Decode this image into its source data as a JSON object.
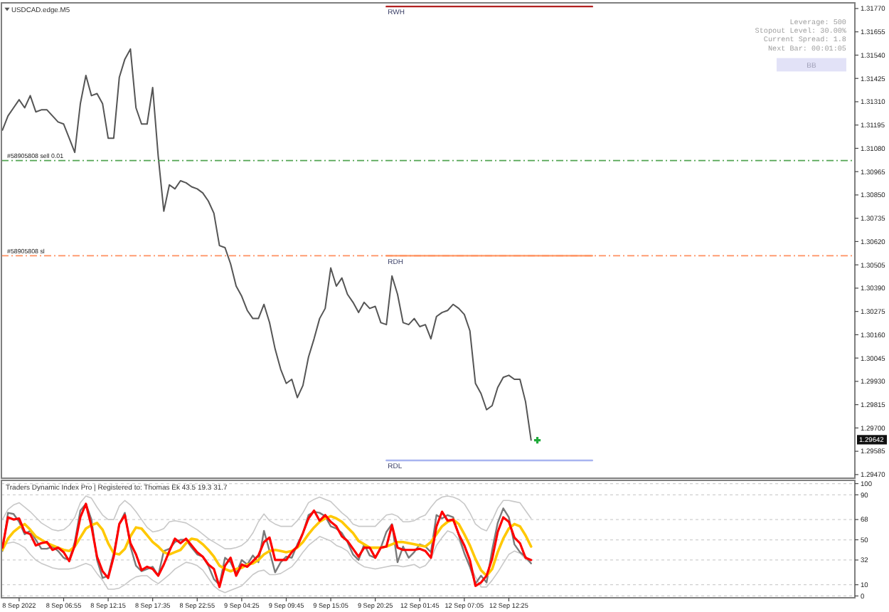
{
  "chart_data": [
    {
      "type": "line",
      "title": "USDCAD.edge.M5",
      "tick_labels": "y",
      "ylim": [
        1.29452,
        1.31798
      ],
      "categories": [
        null,
        null,
        null,
        null,
        null,
        null,
        null,
        null,
        null,
        null,
        null,
        null,
        null,
        null,
        null,
        null,
        null,
        null,
        null,
        null,
        null,
        null,
        null,
        null,
        null,
        null,
        null,
        null,
        null,
        null,
        null,
        null,
        null,
        null,
        null,
        null,
        null,
        null,
        null,
        null,
        null,
        null,
        null,
        null,
        null,
        null,
        null,
        null,
        null,
        null,
        null,
        null,
        null,
        null,
        null,
        null,
        null,
        null,
        null,
        null,
        null,
        null,
        null,
        null,
        null,
        null,
        null,
        null,
        null,
        null,
        null,
        null,
        null,
        null,
        null,
        null,
        null,
        null,
        null,
        null,
        null,
        null,
        null,
        null,
        null,
        null,
        null,
        null,
        null,
        null,
        null,
        null,
        null,
        null,
        null,
        null,
        null,
        null,
        null,
        null,
        null,
        null,
        null,
        null,
        null,
        null,
        null,
        null,
        null,
        null,
        null,
        null,
        null,
        null,
        null,
        null,
        null,
        null,
        null,
        null,
        null,
        null,
        null,
        null,
        null,
        null,
        null,
        null,
        null,
        null,
        null,
        null,
        null,
        null,
        null,
        null,
        null,
        null,
        null,
        null,
        null,
        null,
        null,
        null,
        null,
        null,
        null,
        null,
        null,
        null,
        null,
        null,
        null,
        null
      ],
      "yticks": [
        {
          "value": 1.2947,
          "label": "1.29470"
        },
        1.29585,
        {
          "value": 1.297,
          "label": "1.29700"
        },
        1.29815,
        {
          "value": 1.2993,
          "label": "1.29930"
        },
        1.30045,
        {
          "value": 1.3016,
          "label": "1.30160"
        },
        1.30275,
        {
          "value": 1.3039,
          "label": "1.30390"
        },
        1.30505,
        {
          "value": 1.3062,
          "label": "1.30620"
        },
        1.30735,
        {
          "value": 1.3085,
          "label": "1.30850"
        },
        1.30965,
        {
          "value": 1.3108,
          "label": "1.31080"
        },
        1.31195,
        {
          "value": 1.3131,
          "label": "1.31310"
        },
        1.31425,
        {
          "value": 1.3154,
          "label": "1.31540"
        },
        1.31655,
        {
          "value": 1.3177,
          "label": "1.31770"
        }
      ],
      "series": [
        {
          "color": "#555555",
          "values": [
            1.3117,
            1.3124,
            1.3128,
            1.3132,
            1.3128,
            1.3134,
            1.3126,
            1.3127,
            1.3127,
            1.3124,
            1.3121,
            1.312,
            1.3113,
            1.3106,
            1.313,
            1.3144,
            1.3134,
            1.3135,
            1.313,
            1.3113,
            1.3113,
            1.3143,
            1.3152,
            1.3157,
            1.3128,
            1.312,
            1.312,
            1.3138,
            1.3104,
            1.3077,
            1.309,
            1.3088,
            1.3092,
            1.3091,
            1.3089,
            1.3088,
            1.3086,
            1.3082,
            1.3076,
            1.306,
            1.3059,
            1.3051,
            1.304,
            1.3035,
            1.3028,
            1.3024,
            1.3024,
            1.3031,
            1.3022,
            1.3009,
            1.2999,
            1.2992,
            1.2994,
            1.2985,
            1.2991,
            1.3005,
            1.3014,
            1.3024,
            1.3029,
            1.3049,
            1.304,
            1.3044,
            1.3036,
            1.3032,
            1.3027,
            1.3032,
            1.3029,
            1.303,
            1.3022,
            1.3021,
            1.3045,
            1.3036,
            1.3022,
            1.3021,
            1.3024,
            1.302,
            1.3021,
            1.3014,
            1.3025,
            1.3027,
            1.3028,
            1.3031,
            1.3029,
            1.3026,
            1.3018,
            1.2992,
            1.2987,
            1.2979,
            1.2981,
            1.299,
            1.2995,
            1.2996,
            1.2994,
            1.2994,
            1.2983,
            1.2964,
            null,
            null,
            null,
            null,
            null,
            null,
            null,
            null,
            null,
            null,
            null,
            null,
            null,
            null,
            null,
            null,
            null,
            null,
            null,
            null,
            null,
            null,
            null,
            null,
            null,
            null,
            null,
            null,
            null,
            null,
            null,
            null,
            null,
            null,
            null,
            null,
            null,
            null,
            null,
            null,
            null,
            null,
            null,
            null,
            null,
            null,
            null,
            null,
            null,
            null,
            null,
            null,
            null,
            null,
            null,
            null,
            null,
            null
          ]
        },
        {
          "name": "RWH",
          "color": "#b22222",
          "values": [
            null,
            null,
            null,
            null,
            null,
            null,
            null,
            null,
            null,
            null,
            null,
            null,
            null,
            null,
            null,
            null,
            null,
            null,
            null,
            null,
            null,
            null,
            null,
            null,
            null,
            null,
            null,
            null,
            null,
            null,
            null,
            null,
            null,
            null,
            null,
            null,
            null,
            null,
            null,
            null,
            null,
            null,
            null,
            null,
            null,
            null,
            null,
            null,
            null,
            null,
            null,
            null,
            null,
            null,
            null,
            null,
            null,
            null,
            null,
            null,
            null,
            null,
            null,
            null,
            null,
            null,
            null,
            null,
            null,
            1.3178,
            1.3178,
            1.3178,
            1.3178,
            1.3178,
            1.3178,
            1.3178,
            1.3178,
            1.3178,
            1.3178,
            1.3178,
            1.3178,
            1.3178,
            1.3178,
            1.3178,
            1.3178,
            1.3178,
            1.3178,
            1.3178,
            1.3178,
            1.3178,
            1.3178,
            1.3178,
            1.3178,
            1.3178,
            1.3178,
            1.3178,
            1.3178,
            1.3178,
            1.3178,
            1.3178,
            1.3178,
            1.3178,
            1.3178,
            1.3178,
            1.3178,
            1.3178,
            1.3178,
            null,
            null,
            null,
            null,
            null,
            null,
            null,
            null,
            null,
            null,
            null,
            null,
            null,
            null,
            null,
            null,
            null,
            null,
            null,
            null,
            null,
            null,
            null,
            null,
            null,
            null,
            null,
            null,
            null,
            null,
            null,
            null,
            null,
            null,
            null,
            null,
            null,
            null,
            null,
            null,
            null,
            null,
            null,
            null,
            null,
            null,
            null
          ]
        },
        {
          "name": "RDH",
          "color": "#ff9966",
          "values": [
            null,
            null,
            null,
            null,
            null,
            null,
            null,
            null,
            null,
            null,
            null,
            null,
            null,
            null,
            null,
            null,
            null,
            null,
            null,
            null,
            null,
            null,
            null,
            null,
            null,
            null,
            null,
            null,
            null,
            null,
            null,
            null,
            null,
            null,
            null,
            null,
            null,
            null,
            null,
            null,
            null,
            null,
            null,
            null,
            null,
            null,
            null,
            null,
            null,
            null,
            null,
            null,
            null,
            null,
            null,
            null,
            null,
            null,
            null,
            null,
            null,
            null,
            null,
            null,
            null,
            null,
            null,
            null,
            null,
            1.3055,
            1.3055,
            1.3055,
            1.3055,
            1.3055,
            1.3055,
            1.3055,
            1.3055,
            1.3055,
            1.3055,
            1.3055,
            1.3055,
            1.3055,
            1.3055,
            1.3055,
            1.3055,
            1.3055,
            1.3055,
            1.3055,
            1.3055,
            1.3055,
            1.3055,
            1.3055,
            1.3055,
            1.3055,
            1.3055,
            1.3055,
            1.3055,
            1.3055,
            1.3055,
            1.3055,
            1.3055,
            1.3055,
            1.3055,
            1.3055,
            1.3055,
            1.3055,
            1.3055,
            null,
            null,
            null,
            null,
            null,
            null,
            null,
            null,
            null,
            null,
            null,
            null,
            null,
            null,
            null,
            null,
            null,
            null,
            null,
            null,
            null,
            null,
            null,
            null,
            null,
            null,
            null,
            null,
            null,
            null,
            null,
            null,
            null,
            null,
            null,
            null,
            null,
            null,
            null,
            null,
            null,
            null,
            null,
            null,
            null,
            null,
            null
          ]
        },
        {
          "name": "RDL",
          "color": "#a8b4f0",
          "values": [
            null,
            null,
            null,
            null,
            null,
            null,
            null,
            null,
            null,
            null,
            null,
            null,
            null,
            null,
            null,
            null,
            null,
            null,
            null,
            null,
            null,
            null,
            null,
            null,
            null,
            null,
            null,
            null,
            null,
            null,
            null,
            null,
            null,
            null,
            null,
            null,
            null,
            null,
            null,
            null,
            null,
            null,
            null,
            null,
            null,
            null,
            null,
            null,
            null,
            null,
            null,
            null,
            null,
            null,
            null,
            null,
            null,
            null,
            null,
            null,
            null,
            null,
            null,
            null,
            null,
            null,
            null,
            null,
            null,
            1.2954,
            1.2954,
            1.2954,
            1.2954,
            1.2954,
            1.2954,
            1.2954,
            1.2954,
            1.2954,
            1.2954,
            1.2954,
            1.2954,
            1.2954,
            1.2954,
            1.2954,
            1.2954,
            1.2954,
            1.2954,
            1.2954,
            1.2954,
            1.2954,
            1.2954,
            1.2954,
            1.2954,
            1.2954,
            1.2954,
            1.2954,
            1.2954,
            1.2954,
            1.2954,
            1.2954,
            1.2954,
            1.2954,
            1.2954,
            1.2954,
            1.2954,
            1.2954,
            1.2954,
            null,
            null,
            null,
            null,
            null,
            null,
            null,
            null,
            null,
            null,
            null,
            null,
            null,
            null,
            null,
            null,
            null,
            null,
            null,
            null,
            null,
            null,
            null,
            null,
            null,
            null,
            null,
            null,
            null,
            null,
            null,
            null,
            null,
            null,
            null,
            null,
            null,
            null,
            null,
            null,
            null,
            null,
            null,
            null,
            null,
            null,
            null
          ]
        }
      ],
      "ref_lines": [
        {
          "axis": "y",
          "value": 1.3102,
          "label": "#58905808 sell 0.01",
          "color": "#52a552",
          "line_style": "dashed"
        },
        {
          "axis": "y",
          "value": 1.3055,
          "label": "#58905808 sl",
          "color": "#ff9060",
          "line_style": "dashed"
        }
      ],
      "annotations": [
        "Leverage: 500",
        "Stopout Level: 30.00%",
        "Current Spread: 1.8",
        "Next Bar: 00:01:05",
        "BB",
        {
          "text": "1.29642",
          "y": 1.29642
        }
      ]
    },
    {
      "type": "line",
      "title": "Traders Dynamic Index Pro | Registered to: Thomas Ek 43.5 19.3 31.7",
      "ylim": [
        -1.6,
        102.9
      ],
      "categories": [
        null,
        null,
        null,
        "8 Sep 2022",
        null,
        null,
        null,
        null,
        null,
        null,
        null,
        "8 Sep 06:55",
        null,
        null,
        null,
        null,
        null,
        null,
        null,
        "8 Sep 12:15",
        null,
        null,
        null,
        null,
        null,
        null,
        null,
        "8 Sep 17:35",
        null,
        null,
        null,
        null,
        null,
        null,
        null,
        "8 Sep 22:55",
        null,
        null,
        null,
        null,
        null,
        null,
        null,
        "9 Sep 04:25",
        null,
        null,
        null,
        null,
        null,
        null,
        null,
        "9 Sep 09:45",
        null,
        null,
        null,
        null,
        null,
        null,
        null,
        "9 Sep 15:05",
        null,
        null,
        null,
        null,
        null,
        null,
        null,
        "9 Sep 20:25",
        null,
        null,
        null,
        null,
        null,
        null,
        null,
        "12 Sep 01:45",
        null,
        null,
        null,
        null,
        null,
        null,
        null,
        "12 Sep 07:05",
        null,
        null,
        null,
        null,
        null,
        null,
        null,
        "12 Sep 12:25",
        null,
        null,
        null,
        null,
        null,
        null,
        null,
        null,
        null,
        null,
        null,
        null,
        null,
        null,
        null,
        null,
        null,
        null,
        null,
        null,
        null,
        null,
        null,
        null,
        null,
        null,
        null,
        null,
        null,
        null,
        null,
        null,
        null,
        null,
        null,
        null,
        null,
        null,
        null,
        null,
        null,
        null,
        null,
        null,
        null,
        null,
        null,
        null,
        null,
        null,
        null,
        null,
        null,
        null,
        null,
        null,
        null,
        null,
        null,
        null,
        null,
        null
      ],
      "yticks": [
        0,
        10,
        32,
        50,
        68,
        90,
        100
      ],
      "grid": "y",
      "series": [
        {
          "color": "#c8c8c8",
          "values": [
            68,
            77,
            81,
            83,
            79,
            75,
            70,
            65,
            62,
            59,
            58,
            59,
            63,
            70,
            83,
            89,
            87,
            79,
            72,
            68,
            68,
            80,
            85,
            81,
            75,
            68,
            61,
            57,
            58,
            60,
            66,
            67,
            66,
            65,
            62,
            59,
            55,
            51,
            48,
            45,
            42,
            42,
            43,
            45,
            49,
            56,
            66,
            73,
            67,
            64,
            62,
            62,
            62,
            67,
            74,
            83,
            86,
            88,
            86,
            84,
            79,
            74,
            70,
            64,
            62,
            62,
            62,
            62,
            67,
            72,
            73,
            71,
            66,
            66,
            67,
            70,
            72,
            79,
            85,
            88,
            89,
            88,
            86,
            82,
            74,
            64,
            60,
            58,
            67,
            78,
            85,
            85,
            84,
            83,
            76,
            69,
            null,
            null,
            null,
            null,
            null,
            null,
            null,
            null,
            null,
            null,
            null,
            null,
            null,
            null,
            null,
            null,
            null,
            null,
            null,
            null,
            null,
            null,
            null,
            null,
            null,
            null,
            null,
            null,
            null,
            null,
            null,
            null,
            null,
            null,
            null,
            null,
            null,
            null,
            null,
            null,
            null,
            null,
            null,
            null,
            null,
            null,
            null,
            null,
            null,
            null,
            null,
            null,
            null,
            null,
            null,
            null,
            null,
            null
          ]
        },
        {
          "color": "#c8c8c8",
          "values": [
            45,
            47,
            48,
            46,
            43,
            37,
            32,
            29,
            27,
            25,
            24,
            24,
            24,
            25,
            27,
            29,
            27,
            20,
            14,
            6,
            6,
            7,
            10,
            14,
            17,
            18,
            18,
            14,
            11,
            15,
            19,
            24,
            27,
            30,
            29,
            27,
            23,
            16,
            9,
            5,
            3,
            5,
            7,
            9,
            14,
            19,
            22,
            23,
            19,
            19,
            20,
            23,
            26,
            32,
            39,
            45,
            49,
            53,
            51,
            49,
            45,
            43,
            40,
            33,
            29,
            26,
            25,
            24,
            25,
            26,
            27,
            27,
            26,
            27,
            28,
            25,
            27,
            33,
            45,
            52,
            58,
            56,
            50,
            38,
            28,
            17,
            8,
            8,
            14,
            21,
            29,
            37,
            40,
            38,
            33,
            29,
            null,
            null,
            null,
            null,
            null,
            null,
            null,
            null,
            null,
            null,
            null,
            null,
            null,
            null,
            null,
            null,
            null,
            null,
            null,
            null,
            null,
            null,
            null,
            null,
            null,
            null,
            null,
            null,
            null,
            null,
            null,
            null,
            null,
            null,
            null,
            null,
            null,
            null,
            null,
            null,
            null,
            null,
            null,
            null,
            null,
            null,
            null,
            null,
            null,
            null,
            null,
            null,
            null,
            null,
            null,
            null,
            null,
            null
          ]
        },
        {
          "color": "#7a7a7a",
          "values": [
            40,
            74,
            73,
            66,
            55,
            58,
            50,
            42,
            42,
            44,
            40,
            34,
            32,
            48,
            76,
            82,
            68,
            32,
            16,
            18,
            38,
            64,
            74,
            44,
            27,
            22,
            24,
            26,
            18,
            40,
            42,
            48,
            50,
            50,
            43,
            37,
            35,
            27,
            15,
            10,
            34,
            30,
            20,
            32,
            28,
            36,
            30,
            58,
            40,
            21,
            30,
            35,
            34,
            46,
            56,
            72,
            75,
            74,
            71,
            62,
            60,
            56,
            48,
            37,
            32,
            46,
            36,
            34,
            43,
            57,
            64,
            30,
            44,
            34,
            39,
            46,
            44,
            39,
            72,
            69,
            72,
            70,
            54,
            38,
            26,
            11,
            18,
            12,
            41,
            65,
            78,
            70,
            46,
            39,
            35,
            29,
            null,
            null,
            null,
            null,
            null,
            null,
            null,
            null,
            null,
            null,
            null,
            null,
            null,
            null,
            null,
            null,
            null,
            null,
            null,
            null,
            null,
            null,
            null,
            null,
            null,
            null,
            null,
            null,
            null,
            null,
            null,
            null,
            null,
            null,
            null,
            null,
            null,
            null,
            null,
            null,
            null,
            null,
            null,
            null,
            null,
            null,
            null,
            null,
            null,
            null,
            null,
            null,
            null,
            null,
            null,
            null,
            null,
            null
          ]
        },
        {
          "color": "#ffc800",
          "values": [
            41,
            51,
            57,
            61,
            64,
            59,
            53,
            50,
            47,
            45,
            43,
            41,
            40,
            44,
            52,
            60,
            63,
            65,
            59,
            47,
            38,
            37,
            42,
            53,
            61,
            60,
            54,
            48,
            44,
            39,
            37,
            39,
            41,
            47,
            51,
            50,
            46,
            41,
            35,
            27,
            24,
            22,
            24,
            25,
            28,
            29,
            32,
            37,
            40,
            41,
            40,
            39,
            40,
            43,
            48,
            55,
            61,
            66,
            69,
            71,
            69,
            66,
            61,
            56,
            49,
            46,
            43,
            43,
            43,
            44,
            46,
            48,
            48,
            47,
            46,
            45,
            44,
            48,
            55,
            62,
            66,
            68,
            64,
            55,
            45,
            33,
            23,
            18,
            24,
            39,
            51,
            60,
            64,
            62,
            54,
            44,
            null,
            null,
            null,
            null,
            null,
            null,
            null,
            null,
            null,
            null,
            null,
            null,
            null,
            null,
            null,
            null,
            null,
            null,
            null,
            null,
            null,
            null,
            null,
            null,
            null,
            null,
            null,
            null,
            null,
            null,
            null,
            null,
            null,
            null,
            null,
            null,
            null,
            null,
            null,
            null,
            null,
            null,
            null,
            null,
            null,
            null,
            null,
            null,
            null,
            null,
            null,
            null,
            null,
            null,
            null,
            null,
            null,
            null
          ]
        },
        {
          "color": "#ff0000",
          "values": [
            43,
            70,
            68,
            69,
            57,
            55,
            45,
            47,
            48,
            41,
            43,
            39,
            31,
            45,
            70,
            82,
            62,
            35,
            22,
            16,
            35,
            64,
            72,
            47,
            37,
            23,
            26,
            24,
            18,
            28,
            40,
            51,
            47,
            51,
            45,
            39,
            35,
            28,
            24,
            8,
            27,
            34,
            18,
            28,
            26,
            31,
            36,
            48,
            52,
            32,
            32,
            32,
            39,
            44,
            56,
            69,
            76,
            67,
            72,
            66,
            62,
            53,
            49,
            42,
            35,
            43,
            43,
            34,
            43,
            44,
            63,
            43,
            41,
            41,
            41,
            42,
            40,
            34,
            62,
            75,
            67,
            68,
            55,
            45,
            32,
            9,
            12,
            18,
            33,
            57,
            70,
            66,
            52,
            47,
            34,
            32,
            null,
            null,
            null,
            null,
            null,
            null,
            null,
            null,
            null,
            null,
            null,
            null,
            null,
            null,
            null,
            null,
            null,
            null,
            null,
            null,
            null,
            null,
            null,
            null,
            null,
            null,
            null,
            null,
            null,
            null,
            null,
            null,
            null,
            null,
            null,
            null,
            null,
            null,
            null,
            null,
            null,
            null,
            null,
            null,
            null,
            null,
            null,
            null,
            null,
            null,
            null,
            null,
            null,
            null,
            null,
            null,
            null,
            null
          ]
        }
      ]
    }
  ]
}
